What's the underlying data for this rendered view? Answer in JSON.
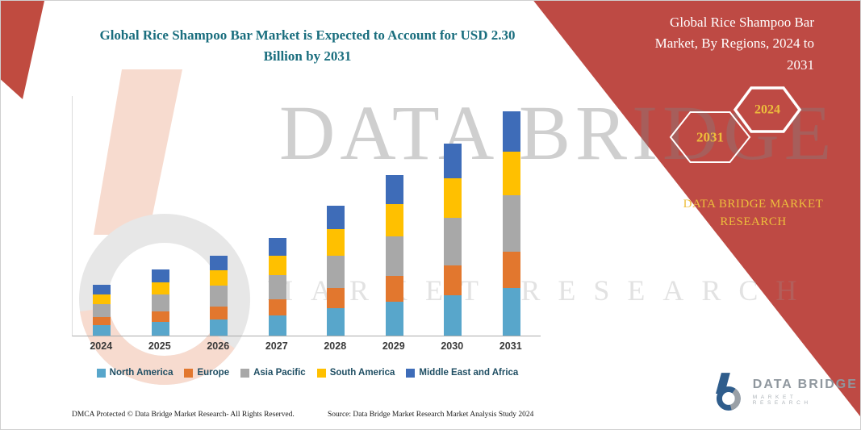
{
  "title": {
    "text": "Global Rice Shampoo Bar Market is Expected to Account for USD 2.30 Billion by 2031",
    "color": "#1A6E7E"
  },
  "watermarks": {
    "primary": "DATA BRIDGE",
    "secondary": "MARKET RESEARCH"
  },
  "side_panel": {
    "color": "#BE4A44",
    "heading": "Global Rice Shampoo Bar Market, By Regions, 2024 to 2031",
    "hexagon_back_label": "2031",
    "hexagon_front_label": "2024",
    "hexagon_label_color": "#EDBE3C",
    "brand_text": "DATA BRIDGE MARKET RESEARCH",
    "brand_color": "#EDBE3C"
  },
  "branding": {
    "logo_text": "DATA BRIDGE",
    "logo_tagline": "MARKET RESEARCH"
  },
  "footer": {
    "dmca": "DMCA Protected © Data Bridge Market Research-  All Rights Reserved.",
    "source": "Source: Data Bridge Market Research  Market Analysis Study 2024"
  },
  "chart_data": {
    "type": "bar",
    "stacked": true,
    "title": "Global Rice Shampoo Bar Market is Expected to Account for USD 2.30 Billion by 2031",
    "unit": "USD Billion",
    "values_estimated_from_bar_heights": true,
    "categories": [
      "2024",
      "2025",
      "2026",
      "2027",
      "2028",
      "2029",
      "2030",
      "2031"
    ],
    "series": [
      {
        "name": "North America",
        "color": "#58A6CB",
        "values": [
          0.11,
          0.14,
          0.17,
          0.21,
          0.28,
          0.35,
          0.41,
          0.49
        ]
      },
      {
        "name": "Europe",
        "color": "#E2772E",
        "values": [
          0.08,
          0.11,
          0.13,
          0.16,
          0.21,
          0.26,
          0.31,
          0.37
        ]
      },
      {
        "name": "Asia Pacific",
        "color": "#A8A8A8",
        "values": [
          0.13,
          0.17,
          0.21,
          0.25,
          0.33,
          0.41,
          0.49,
          0.58
        ]
      },
      {
        "name": "South America",
        "color": "#FFC000",
        "values": [
          0.1,
          0.13,
          0.16,
          0.2,
          0.27,
          0.33,
          0.4,
          0.45
        ]
      },
      {
        "name": "Middle East and Africa",
        "color": "#3E6CB8",
        "values": [
          0.1,
          0.13,
          0.15,
          0.18,
          0.24,
          0.3,
          0.36,
          0.41
        ]
      }
    ],
    "totals": [
      0.52,
      0.68,
      0.82,
      1.0,
      1.33,
      1.65,
      1.97,
      2.3
    ],
    "ylim": [
      0,
      2.5
    ],
    "grid": false,
    "legend_position": "bottom",
    "y_axis_labels_visible": false
  }
}
